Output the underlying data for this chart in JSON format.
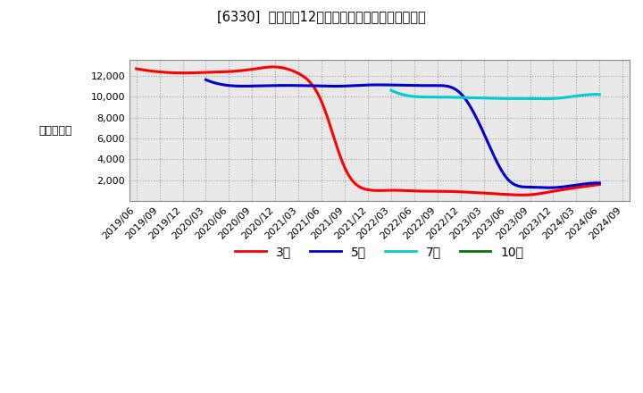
{
  "title": "[6330]  経常利益12か月移動合計の標準偏差の推移",
  "ylabel": "（百万円）",
  "background_color": "#ffffff",
  "grid_color": "#999999",
  "plot_bg_color": "#e8e8e8",
  "line_colors": {
    "3yr": "#ff0000",
    "5yr": "#0000cc",
    "7yr": "#00cccc",
    "10yr": "#007700"
  },
  "legend_labels": [
    "3年",
    "5年",
    "7年",
    "10年"
  ],
  "ylim": [
    0,
    13500
  ],
  "yticks": [
    2000,
    4000,
    6000,
    8000,
    10000,
    12000
  ],
  "x_labels": [
    "2019/06",
    "2019/09",
    "2019/12",
    "2020/03",
    "2020/06",
    "2020/09",
    "2020/12",
    "2021/03",
    "2021/06",
    "2021/09",
    "2021/12",
    "2022/03",
    "2022/06",
    "2022/09",
    "2022/12",
    "2023/03",
    "2023/06",
    "2023/09",
    "2023/12",
    "2024/03",
    "2024/06",
    "2024/09"
  ],
  "series_3yr_x": [
    0,
    1,
    2,
    3,
    4,
    5,
    6,
    7,
    8,
    9,
    10,
    11,
    12,
    13,
    14,
    15,
    16,
    17,
    18,
    19,
    20
  ],
  "series_3yr_y": [
    12650,
    12350,
    12250,
    12300,
    12380,
    12600,
    12820,
    12200,
    9500,
    3200,
    1100,
    1050,
    980,
    950,
    900,
    780,
    650,
    620,
    950,
    1300,
    1600
  ],
  "series_5yr_x": [
    3,
    4,
    5,
    6,
    7,
    8,
    9,
    10,
    11,
    12,
    13,
    14,
    15,
    16,
    17,
    18,
    19,
    20
  ],
  "series_5yr_y": [
    11600,
    11050,
    11000,
    11050,
    11050,
    11000,
    11000,
    11100,
    11100,
    11050,
    11050,
    10300,
    6500,
    2200,
    1350,
    1300,
    1550,
    1750
  ],
  "series_7yr_x": [
    11,
    12,
    13,
    14,
    15,
    16,
    17,
    18,
    19,
    20
  ],
  "series_7yr_y": [
    10600,
    10000,
    9950,
    9900,
    9850,
    9800,
    9800,
    9800,
    10050,
    10200
  ],
  "series_10yr_x": [],
  "series_10yr_y": []
}
